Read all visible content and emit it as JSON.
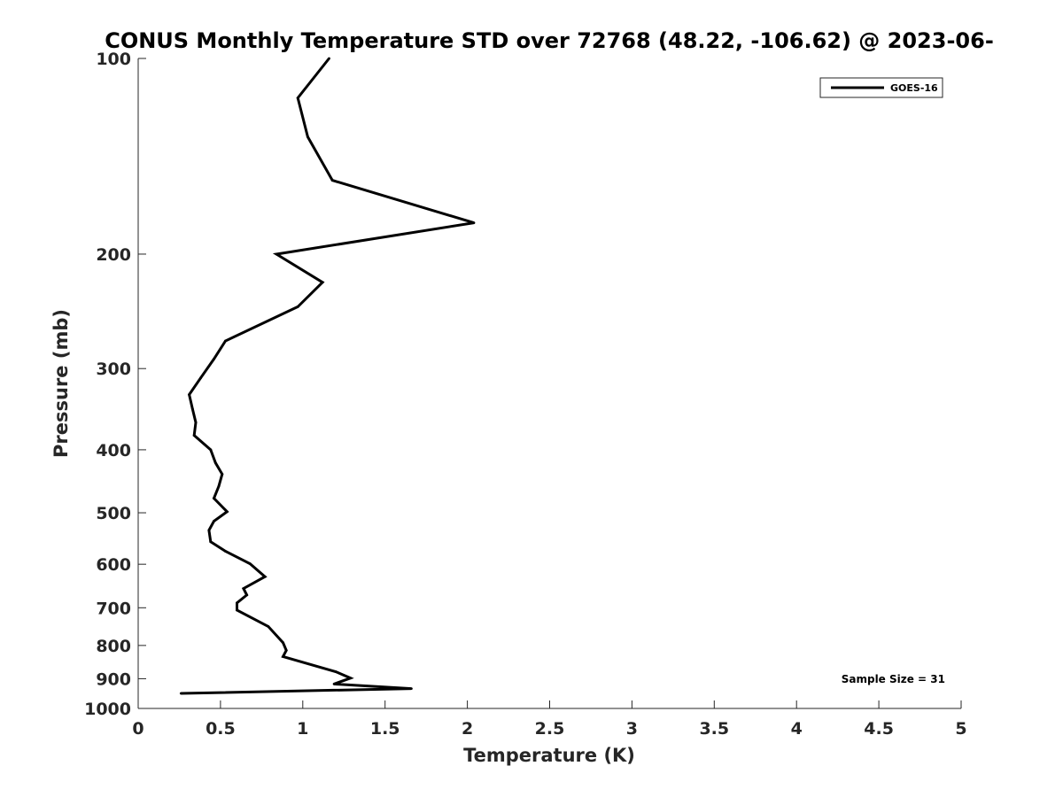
{
  "chart_data": {
    "type": "line",
    "title": "CONUS Monthly Temperature STD over 72768 (48.22, -106.62) @ 2023-06-",
    "xlabel": "Temperature (K)",
    "ylabel": "Pressure (mb)",
    "xlim": [
      0,
      5
    ],
    "ylim": [
      100,
      1000
    ],
    "y_scale": "log",
    "y_reversed": true,
    "x_ticks": [
      "0",
      "0.5",
      "1",
      "1.5",
      "2",
      "2.5",
      "3",
      "3.5",
      "4",
      "4.5",
      "5"
    ],
    "y_ticks": [
      "100",
      "200",
      "300",
      "400",
      "500",
      "600",
      "700",
      "800",
      "900",
      "1000"
    ],
    "grid": false,
    "legend_position": "top-right",
    "series": [
      {
        "name": "GOES-16",
        "color": "#000000",
        "points": [
          {
            "x": 1.16,
            "y": 100
          },
          {
            "x": 0.97,
            "y": 115
          },
          {
            "x": 1.03,
            "y": 132
          },
          {
            "x": 1.18,
            "y": 154
          },
          {
            "x": 2.04,
            "y": 179
          },
          {
            "x": 0.84,
            "y": 200
          },
          {
            "x": 1.12,
            "y": 221
          },
          {
            "x": 0.97,
            "y": 241
          },
          {
            "x": 0.53,
            "y": 272
          },
          {
            "x": 0.46,
            "y": 290
          },
          {
            "x": 0.38,
            "y": 310
          },
          {
            "x": 0.31,
            "y": 329
          },
          {
            "x": 0.33,
            "y": 346
          },
          {
            "x": 0.35,
            "y": 363
          },
          {
            "x": 0.34,
            "y": 380
          },
          {
            "x": 0.44,
            "y": 400
          },
          {
            "x": 0.47,
            "y": 419
          },
          {
            "x": 0.51,
            "y": 436
          },
          {
            "x": 0.49,
            "y": 455
          },
          {
            "x": 0.46,
            "y": 475
          },
          {
            "x": 0.54,
            "y": 498
          },
          {
            "x": 0.46,
            "y": 515
          },
          {
            "x": 0.43,
            "y": 532
          },
          {
            "x": 0.44,
            "y": 554
          },
          {
            "x": 0.53,
            "y": 573
          },
          {
            "x": 0.68,
            "y": 599
          },
          {
            "x": 0.77,
            "y": 627
          },
          {
            "x": 0.64,
            "y": 654
          },
          {
            "x": 0.66,
            "y": 669
          },
          {
            "x": 0.6,
            "y": 688
          },
          {
            "x": 0.6,
            "y": 706
          },
          {
            "x": 0.79,
            "y": 748
          },
          {
            "x": 0.88,
            "y": 792
          },
          {
            "x": 0.9,
            "y": 814
          },
          {
            "x": 0.88,
            "y": 832
          },
          {
            "x": 1.2,
            "y": 878
          },
          {
            "x": 1.29,
            "y": 898
          },
          {
            "x": 1.19,
            "y": 917
          },
          {
            "x": 1.66,
            "y": 932
          },
          {
            "x": 0.26,
            "y": 948
          }
        ]
      }
    ],
    "annotations": [
      "Sample Size = 31"
    ]
  }
}
